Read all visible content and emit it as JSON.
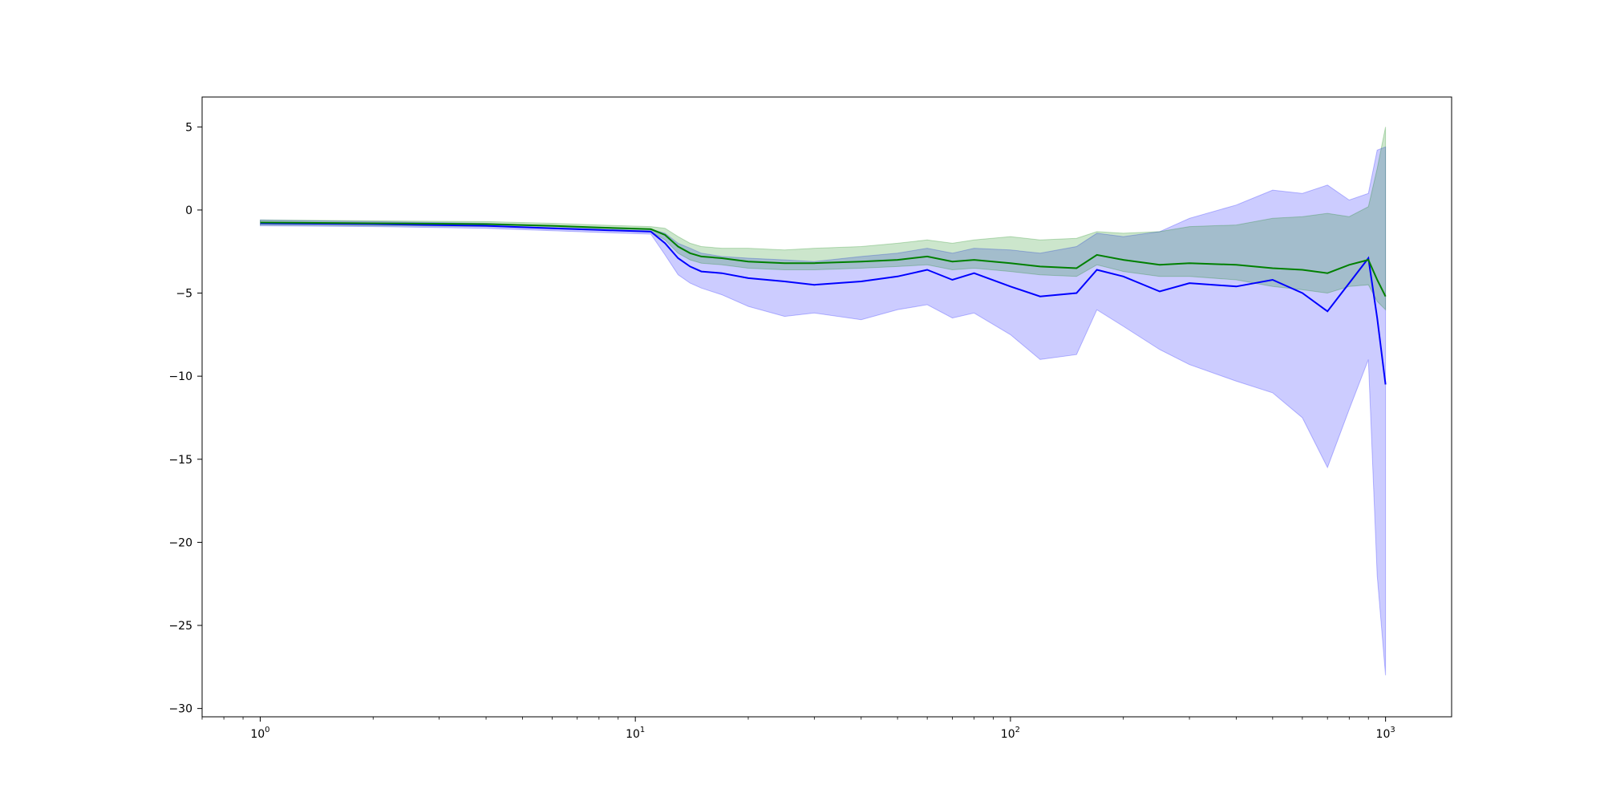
{
  "chart_data": {
    "type": "line",
    "title": "",
    "xlabel": "",
    "ylabel": "",
    "x_scale": "log",
    "xlim": [
      0.7,
      1500
    ],
    "ylim": [
      -30.5,
      6.8
    ],
    "x_ticks": [
      1,
      10,
      100,
      1000
    ],
    "x_tick_labels": [
      {
        "base": "10",
        "exp": "0"
      },
      {
        "base": "10",
        "exp": "1"
      },
      {
        "base": "10",
        "exp": "2"
      },
      {
        "base": "10",
        "exp": "3"
      }
    ],
    "y_ticks": [
      5,
      0,
      -5,
      -10,
      -15,
      -20,
      -25,
      -30
    ],
    "y_tick_labels": [
      "5",
      "0",
      "−5",
      "−10",
      "−15",
      "−20",
      "−25",
      "−30"
    ],
    "grid": false,
    "legend": "none",
    "series": [
      {
        "color": "#0000ff",
        "band_color": "#0000ff",
        "band_opacity": 0.2,
        "x": [
          1,
          2,
          4,
          6,
          8,
          11,
          12,
          13,
          14,
          15,
          17,
          20,
          25,
          30,
          40,
          50,
          60,
          70,
          80,
          100,
          120,
          150,
          170,
          200,
          250,
          300,
          400,
          500,
          600,
          700,
          800,
          900,
          950,
          1000
        ],
        "y": [
          -0.8,
          -0.85,
          -0.95,
          -1.1,
          -1.2,
          -1.3,
          -2.0,
          -2.9,
          -3.4,
          -3.7,
          -3.8,
          -4.1,
          -4.3,
          -4.5,
          -4.3,
          -4.0,
          -3.6,
          -4.2,
          -3.8,
          -4.6,
          -5.2,
          -5.0,
          -3.6,
          -4.0,
          -4.9,
          -4.4,
          -4.6,
          -4.2,
          -5.0,
          -6.1,
          -4.4,
          -2.9,
          -6.5,
          -10.5
        ],
        "band_low": [
          -0.95,
          -1.0,
          -1.1,
          -1.25,
          -1.35,
          -1.45,
          -2.7,
          -3.9,
          -4.4,
          -4.7,
          -5.1,
          -5.8,
          -6.4,
          -6.2,
          -6.6,
          -6.0,
          -5.7,
          -6.5,
          -6.2,
          -7.5,
          -9.0,
          -8.7,
          -6.0,
          -7.0,
          -8.4,
          -9.3,
          -10.3,
          -11.0,
          -12.5,
          -15.5,
          -12.0,
          -9.0,
          -22.0,
          -28.0
        ],
        "band_high": [
          -0.6,
          -0.7,
          -0.8,
          -0.95,
          -1.05,
          -1.15,
          -1.4,
          -2.0,
          -2.3,
          -2.6,
          -2.8,
          -2.9,
          -3.0,
          -3.1,
          -2.8,
          -2.6,
          -2.3,
          -2.6,
          -2.3,
          -2.4,
          -2.6,
          -2.2,
          -1.4,
          -1.6,
          -1.3,
          -0.5,
          0.3,
          1.2,
          1.0,
          1.5,
          0.6,
          1.0,
          3.6,
          3.8
        ]
      },
      {
        "color": "#008000",
        "band_color": "#008000",
        "band_opacity": 0.2,
        "x": [
          1,
          2,
          4,
          6,
          8,
          11,
          12,
          13,
          14,
          15,
          17,
          20,
          25,
          30,
          40,
          50,
          60,
          70,
          80,
          100,
          120,
          150,
          170,
          200,
          250,
          300,
          400,
          500,
          600,
          700,
          800,
          900,
          950,
          1000
        ],
        "y": [
          -0.75,
          -0.8,
          -0.85,
          -0.95,
          -1.05,
          -1.15,
          -1.5,
          -2.2,
          -2.6,
          -2.8,
          -2.9,
          -3.1,
          -3.2,
          -3.2,
          -3.1,
          -3.0,
          -2.8,
          -3.1,
          -3.0,
          -3.2,
          -3.4,
          -3.5,
          -2.7,
          -3.0,
          -3.3,
          -3.2,
          -3.3,
          -3.5,
          -3.6,
          -3.8,
          -3.3,
          -3.0,
          -4.2,
          -5.2
        ],
        "band_low": [
          -0.9,
          -0.95,
          -1.0,
          -1.1,
          -1.2,
          -1.3,
          -1.8,
          -2.6,
          -3.0,
          -3.2,
          -3.3,
          -3.5,
          -3.6,
          -3.6,
          -3.5,
          -3.4,
          -3.3,
          -3.6,
          -3.5,
          -3.7,
          -3.9,
          -4.0,
          -3.3,
          -3.7,
          -4.0,
          -4.0,
          -4.2,
          -4.6,
          -4.8,
          -5.0,
          -4.6,
          -4.5,
          -5.5,
          -6.0
        ],
        "band_high": [
          -0.6,
          -0.65,
          -0.7,
          -0.8,
          -0.9,
          -1.0,
          -1.1,
          -1.6,
          -2.0,
          -2.2,
          -2.3,
          -2.3,
          -2.4,
          -2.3,
          -2.2,
          -2.0,
          -1.8,
          -2.0,
          -1.8,
          -1.6,
          -1.8,
          -1.7,
          -1.3,
          -1.4,
          -1.3,
          -1.0,
          -0.9,
          -0.5,
          -0.4,
          -0.2,
          -0.4,
          0.2,
          2.5,
          5.0
        ]
      }
    ]
  }
}
